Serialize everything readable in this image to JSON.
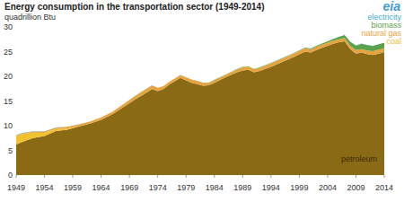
{
  "chart_data": {
    "type": "area",
    "title": "Energy consumption in the transportation sector (1949-2014)",
    "y_label": "quadrillion Btu",
    "annotations": [
      "eia"
    ],
    "stacked": true,
    "grid": false,
    "legend": "top-right",
    "xlim": [
      1949,
      2014
    ],
    "ylim": [
      0,
      30
    ],
    "xticks": [
      1949,
      1954,
      1959,
      1964,
      1969,
      1974,
      1979,
      1984,
      1989,
      1994,
      1999,
      2004,
      2009,
      2014
    ],
    "yticks": [
      0,
      5,
      10,
      15,
      20,
      25,
      30
    ],
    "x": [
      1949,
      1950,
      1952,
      1954,
      1956,
      1958,
      1960,
      1962,
      1964,
      1966,
      1968,
      1970,
      1972,
      1973,
      1974,
      1975,
      1976,
      1977,
      1978,
      1979,
      1980,
      1981,
      1982,
      1983,
      1984,
      1986,
      1988,
      1989,
      1990,
      1991,
      1992,
      1994,
      1996,
      1998,
      2000,
      2001,
      2002,
      2004,
      2005,
      2006,
      2007,
      2008,
      2009,
      2010,
      2011,
      2012,
      2013,
      2014
    ],
    "series": [
      {
        "name": "petroleum",
        "color": "#8b6a16",
        "values": [
          6.2,
          6.7,
          7.5,
          7.9,
          8.9,
          9.2,
          9.8,
          10.4,
          11.2,
          12.3,
          13.8,
          15.3,
          16.7,
          17.4,
          17.0,
          17.4,
          18.3,
          19.0,
          19.7,
          19.2,
          18.7,
          18.4,
          18.1,
          18.2,
          18.7,
          19.8,
          20.8,
          21.2,
          21.3,
          20.8,
          21.1,
          21.9,
          22.9,
          23.9,
          25.0,
          24.8,
          25.3,
          26.2,
          26.6,
          26.9,
          27.1,
          25.5,
          24.6,
          24.8,
          24.5,
          24.3,
          24.6,
          24.9
        ]
      },
      {
        "name": "coal",
        "color": "#f2c12e",
        "values": [
          1.7,
          1.6,
          1.1,
          0.65,
          0.4,
          0.2,
          0.07,
          0.02,
          0.01,
          0,
          0,
          0,
          0,
          0,
          0,
          0,
          0,
          0,
          0,
          0,
          0,
          0,
          0,
          0,
          0,
          0,
          0,
          0,
          0,
          0,
          0,
          0,
          0,
          0,
          0,
          0,
          0,
          0,
          0,
          0,
          0,
          0,
          0,
          0,
          0,
          0,
          0,
          0
        ]
      },
      {
        "name": "natural gas",
        "color": "#e7a33e",
        "values": [
          0.13,
          0.13,
          0.2,
          0.25,
          0.3,
          0.36,
          0.36,
          0.4,
          0.47,
          0.52,
          0.6,
          0.72,
          0.77,
          0.74,
          0.67,
          0.6,
          0.56,
          0.54,
          0.54,
          0.6,
          0.65,
          0.64,
          0.6,
          0.5,
          0.54,
          0.5,
          0.6,
          0.63,
          0.68,
          0.62,
          0.64,
          0.72,
          0.74,
          0.67,
          0.67,
          0.66,
          0.7,
          0.6,
          0.62,
          0.62,
          0.66,
          0.69,
          0.72,
          0.72,
          0.74,
          0.78,
          0.8,
          0.76
        ]
      },
      {
        "name": "biomass",
        "color": "#5da04a",
        "values": [
          0,
          0,
          0,
          0,
          0,
          0,
          0,
          0,
          0,
          0,
          0,
          0,
          0,
          0,
          0,
          0,
          0,
          0,
          0,
          0,
          0,
          0.01,
          0.02,
          0.03,
          0.04,
          0.05,
          0.06,
          0.06,
          0.06,
          0.07,
          0.07,
          0.08,
          0.06,
          0.09,
          0.14,
          0.14,
          0.17,
          0.29,
          0.34,
          0.47,
          0.6,
          0.8,
          0.92,
          1.07,
          1.08,
          1.06,
          1.08,
          1.1
        ]
      },
      {
        "name": "electricity",
        "color": "#3eaad7",
        "values": [
          0.08,
          0.07,
          0.06,
          0.05,
          0.04,
          0.03,
          0.03,
          0.02,
          0.02,
          0.02,
          0.02,
          0.02,
          0.02,
          0.02,
          0.02,
          0.02,
          0.02,
          0.02,
          0.02,
          0.02,
          0.02,
          0.02,
          0.02,
          0.02,
          0.02,
          0.02,
          0.02,
          0.02,
          0.02,
          0.02,
          0.02,
          0.02,
          0.02,
          0.02,
          0.02,
          0.02,
          0.02,
          0.02,
          0.02,
          0.02,
          0.02,
          0.02,
          0.02,
          0.03,
          0.03,
          0.03,
          0.03,
          0.03
        ]
      }
    ]
  }
}
